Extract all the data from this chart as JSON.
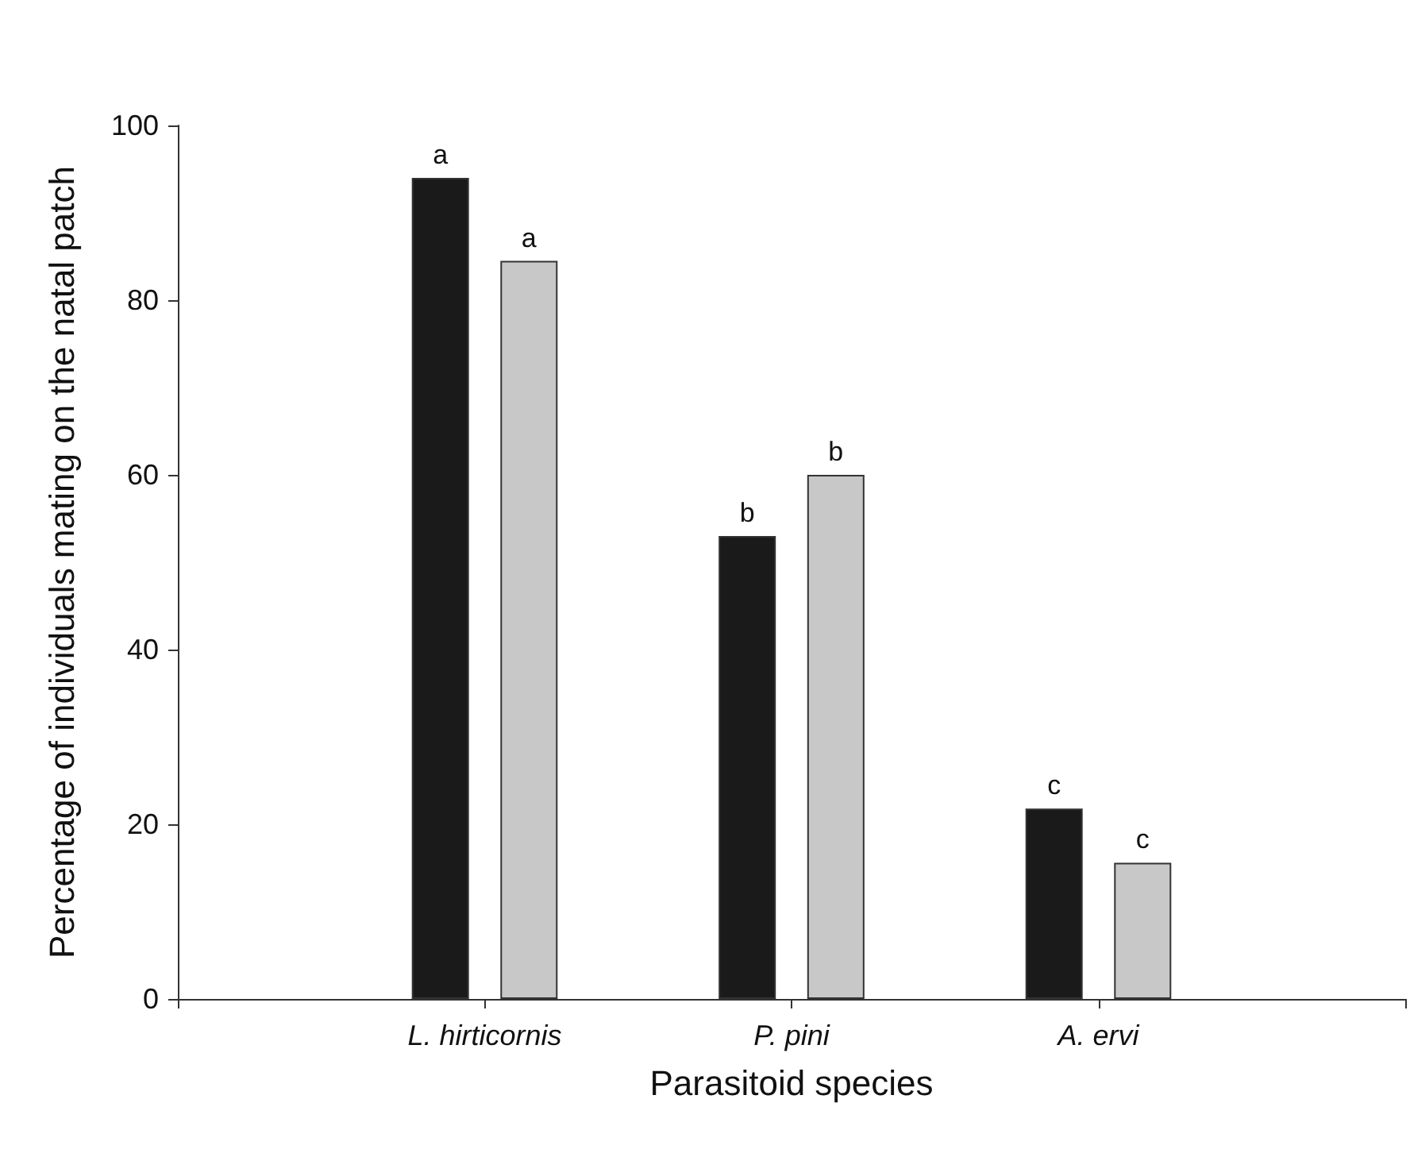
{
  "chart_data": {
    "type": "bar",
    "xlabel": "Parasitoid species",
    "ylabel": "Percentage of individuals mating on the natal patch",
    "categories": [
      null,
      "L. hirticornis",
      "P. pini",
      "A. ervi",
      null
    ],
    "series": [
      {
        "color": "#1a1a1a",
        "values": [
          null,
          94,
          53,
          21.8,
          null
        ],
        "value_labels": [
          null,
          "a",
          "b",
          "c",
          null
        ]
      },
      {
        "color": "#c8c8c8",
        "values": [
          null,
          84.5,
          60,
          15.6,
          null
        ],
        "value_labels": [
          null,
          "a",
          "b",
          "c",
          null
        ]
      }
    ],
    "ylim": [
      0,
      100
    ],
    "yticks": [
      0,
      20,
      40,
      60,
      80,
      100
    ],
    "grid": false
  }
}
